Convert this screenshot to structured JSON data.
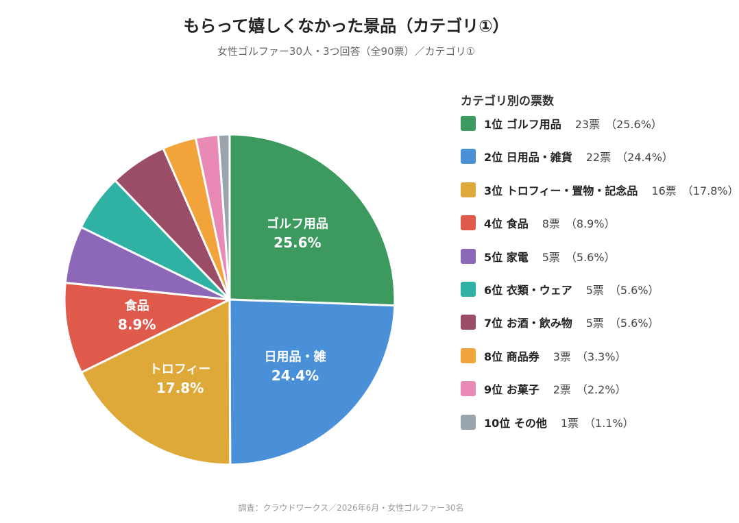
{
  "title": "もらって嬉しくなかった景品（カテゴリ①）",
  "subtitle": "女性ゴルファー30人・3つ回答（全90票）／カテゴリ①",
  "legend_title": "カテゴリ別の票数",
  "footer": "調査：クラウドワークス／2026年6月・女性ゴルファー30名",
  "chart_data": {
    "type": "pie",
    "title": "もらって嬉しくなかった景品（カテゴリ①）",
    "subtitle": "女性ゴルファー30人・3つ回答（全90票）／カテゴリ①",
    "total_votes": 90,
    "start_angle_deg": 0,
    "direction": "clockwise",
    "legend_placement": "right",
    "slices": [
      {
        "rank": "1位",
        "name": "ゴルフ用品",
        "label_lines": [
          "ゴルフ用品",
          "25.6%"
        ],
        "count": "23票",
        "votes": 23,
        "percent": "（25.6%）",
        "value": 25.6,
        "color": "#3c9a5f"
      },
      {
        "rank": "2位",
        "name": "日用品・雑貨",
        "label_lines": [
          "日用品・雑",
          "24.4%"
        ],
        "count": "22票",
        "votes": 22,
        "percent": "（24.4%）",
        "value": 24.4,
        "color": "#4a90d9"
      },
      {
        "rank": "3位",
        "name": "トロフィー・置物・記念品",
        "label_lines": [
          "トロフィー",
          "17.8%"
        ],
        "count": "16票",
        "votes": 16,
        "percent": "（17.8%）",
        "value": 17.8,
        "color": "#dfa93a"
      },
      {
        "rank": "4位",
        "name": "食品",
        "label_lines": [
          "食品",
          "8.9%"
        ],
        "count": "8票",
        "votes": 8,
        "percent": "（8.9%）",
        "value": 8.9,
        "color": "#e05a4b"
      },
      {
        "rank": "5位",
        "name": "家電",
        "label_lines": [],
        "count": "5票",
        "votes": 5,
        "percent": "（5.6%）",
        "value": 5.6,
        "color": "#8d68b8"
      },
      {
        "rank": "6位",
        "name": "衣類・ウェア",
        "label_lines": [],
        "count": "5票",
        "votes": 5,
        "percent": "（5.6%）",
        "value": 5.6,
        "color": "#2fb1a3"
      },
      {
        "rank": "7位",
        "name": "お酒・飲み物",
        "label_lines": [],
        "count": "5票",
        "votes": 5,
        "percent": "（5.6%）",
        "value": 5.6,
        "color": "#9b4d67"
      },
      {
        "rank": "8位",
        "name": "商品券",
        "label_lines": [],
        "count": "3票",
        "votes": 3,
        "percent": "（3.3%）",
        "value": 3.3,
        "color": "#f2a33a"
      },
      {
        "rank": "9位",
        "name": "お菓子",
        "label_lines": [],
        "count": "2票",
        "votes": 2,
        "percent": "（2.2%）",
        "value": 2.2,
        "color": "#e88ab5"
      },
      {
        "rank": "10位",
        "name": "その他",
        "label_lines": [],
        "count": "1票",
        "votes": 1,
        "percent": "（1.1%）",
        "value": 1.1,
        "color": "#9aa4ad"
      }
    ]
  }
}
